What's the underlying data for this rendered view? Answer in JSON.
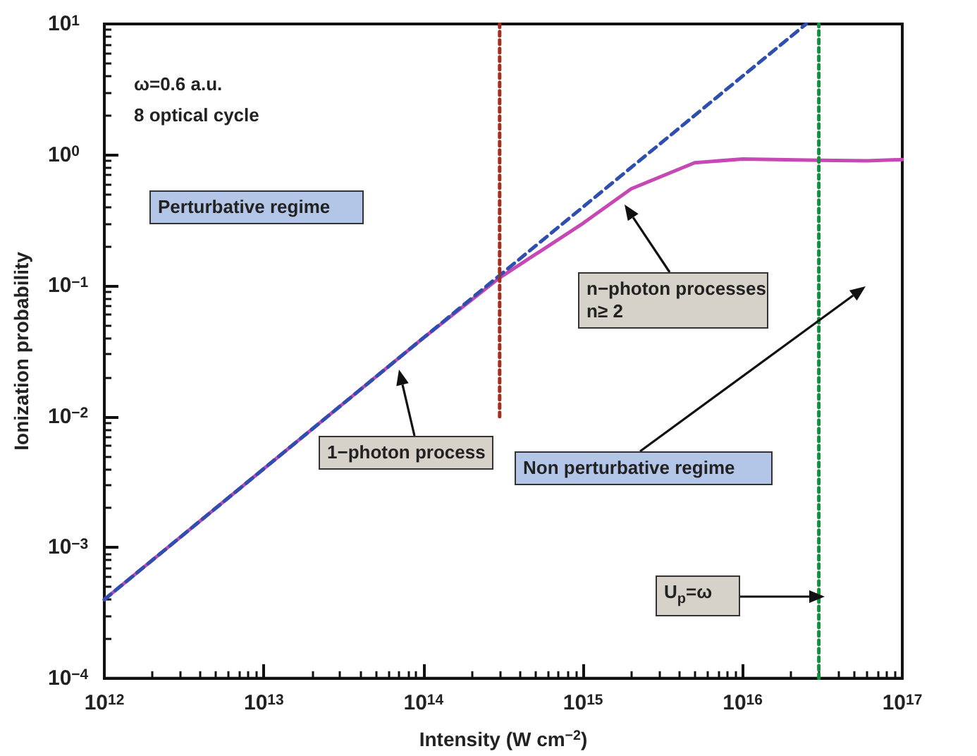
{
  "chart_data": {
    "type": "line",
    "xlabel": "Intensity (W cm$^{−2}$)",
    "ylabel": "Ionization probability",
    "log": "xy",
    "grid": false,
    "xlim": [
      1000000000000.0,
      1e+17
    ],
    "ylim": [
      0.0001,
      10
    ],
    "xticks": [
      {
        "value": 1000000000000.0,
        "label": "10$^{12}$"
      },
      {
        "value": 10000000000000.0,
        "label": "10$^{13}$"
      },
      {
        "value": 100000000000000.0,
        "label": "10$^{14}$"
      },
      {
        "value": 1000000000000000.0,
        "label": "10$^{15}$"
      },
      {
        "value": 1e+16,
        "label": "10$^{16}$"
      },
      {
        "value": 1e+17,
        "label": "10$^{17}$"
      }
    ],
    "yticks": [
      {
        "value": 0.0001,
        "label": "10$^{−4}$"
      },
      {
        "value": 0.001,
        "label": "10$^{−3}$"
      },
      {
        "value": 0.01,
        "label": "10$^{−2}$"
      },
      {
        "value": 0.1,
        "label": "10$^{−1}$"
      },
      {
        "value": 1,
        "label": "10$^{0}$"
      },
      {
        "value": 10,
        "label": "10$^{1}$"
      }
    ],
    "series": [
      {
        "color": "#c548b4",
        "line_style": "solid",
        "x": [
          1000000000000.0,
          10000000000000.0,
          100000000000000.0,
          300000000000000.0,
          1000000000000000.0,
          2000000000000000.0,
          5000000000000000.0,
          1e+16,
          3e+16,
          6e+16,
          1e+17
        ],
        "values": [
          0.0004,
          0.004,
          0.04,
          0.115,
          0.3,
          0.55,
          0.87,
          0.93,
          0.91,
          0.9,
          0.92
        ]
      },
      {
        "color": "#2f4fb0",
        "line_style": "dashed",
        "x": [
          1000000000000.0,
          2.5e+16
        ],
        "values": [
          0.0004,
          10
        ]
      },
      {
        "color": "#a3301f",
        "line_style": "dotted",
        "x": [
          300000000000000.0,
          300000000000000.0
        ],
        "values": [
          0.01,
          10
        ]
      },
      {
        "color": "#12913c",
        "line_style": "dotted",
        "x": [
          3e+16,
          3e+16
        ],
        "values": [
          0.0001,
          10
        ]
      }
    ],
    "annotations": [
      "ω=0.6 a.u.",
      "8 optical cycle",
      "Perturbative regime",
      "1−photon process",
      "n−photon processes\nn≥ 2",
      "Non perturbative regime",
      "U$_{p}$=ω"
    ]
  }
}
